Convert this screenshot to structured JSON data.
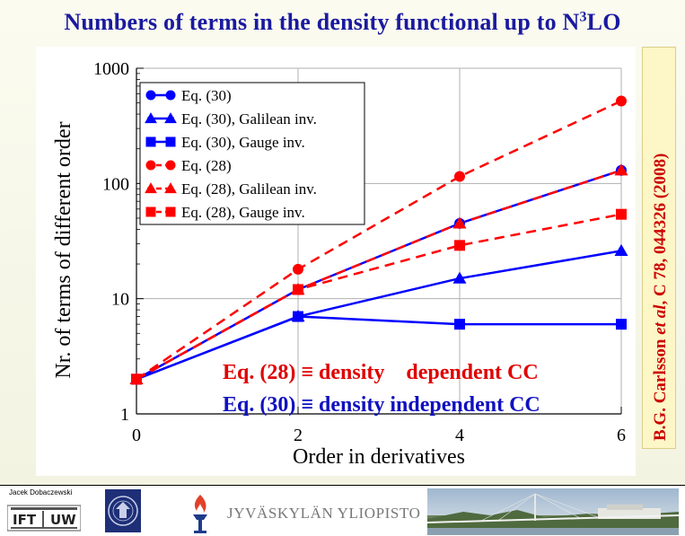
{
  "slide": {
    "title_main": "Numbers of terms in the density functional up to N",
    "title_sup": "3",
    "title_end": "LO",
    "citation": {
      "part1": "B.G. Carlsson ",
      "part2": "et al",
      "part3": ", C 78, 044326 (2008)"
    },
    "footer": {
      "author": "Jacek Dobaczewski",
      "ift_label_left": "IFT",
      "ift_label_right": "UW",
      "university": "JYVÄSKYLÄN YLIOPISTO"
    }
  },
  "colors": {
    "title": "#1a1aa0",
    "red": "#ff0000",
    "blue": "#0000ff",
    "annot_red": "#e00000",
    "annot_blue": "#1010c0",
    "citation": "#cc0000"
  },
  "annotations": [
    {
      "label": "Eq. (28) ≡ density    dependent CC",
      "color": "#e00000"
    },
    {
      "label": "Eq. (30) ≡ density independent CC",
      "color": "#1010c0"
    }
  ],
  "chart_data": {
    "type": "line",
    "xlabel": "Order in derivatives",
    "ylabel": "Nr. of terms of different order",
    "yscale": "log",
    "xlim": [
      0,
      6
    ],
    "ylim": [
      1,
      1000
    ],
    "x_ticks": [
      "0",
      "2",
      "4",
      "6"
    ],
    "y_ticks": [
      "1",
      "10",
      "100",
      "1000"
    ],
    "x": [
      0,
      2,
      4,
      6
    ],
    "legend_location": "top-left",
    "series": [
      {
        "name": "Eq. (30)",
        "color": "#0000ff",
        "dash": "solid",
        "marker": "circle",
        "x": [
          0,
          2,
          4,
          6
        ],
        "values": [
          2,
          12,
          45,
          130
        ]
      },
      {
        "name": "Eq. (30), Galilean inv.",
        "color": "#0000ff",
        "dash": "solid",
        "marker": "triangle",
        "x": [
          0,
          2,
          4,
          6
        ],
        "values": [
          2,
          7,
          15,
          26
        ]
      },
      {
        "name": "Eq. (30), Gauge inv.",
        "color": "#0000ff",
        "dash": "solid",
        "marker": "square",
        "x": [
          0,
          2,
          4,
          6
        ],
        "values": [
          2,
          7,
          6,
          6
        ]
      },
      {
        "name": "Eq. (28)",
        "color": "#ff0000",
        "dash": "dashed",
        "marker": "circle",
        "x": [
          0,
          2,
          4,
          6
        ],
        "values": [
          2,
          18,
          115,
          520
        ]
      },
      {
        "name": "Eq. (28), Galilean inv.",
        "color": "#ff0000",
        "dash": "dashed",
        "marker": "triangle",
        "x": [
          0,
          2,
          4,
          6
        ],
        "values": [
          2,
          12,
          45,
          130
        ]
      },
      {
        "name": "Eq. (28), Gauge inv.",
        "color": "#ff0000",
        "dash": "dashed",
        "marker": "square",
        "x": [
          0,
          2,
          4,
          6
        ],
        "values": [
          2,
          12,
          29,
          54
        ]
      }
    ]
  }
}
